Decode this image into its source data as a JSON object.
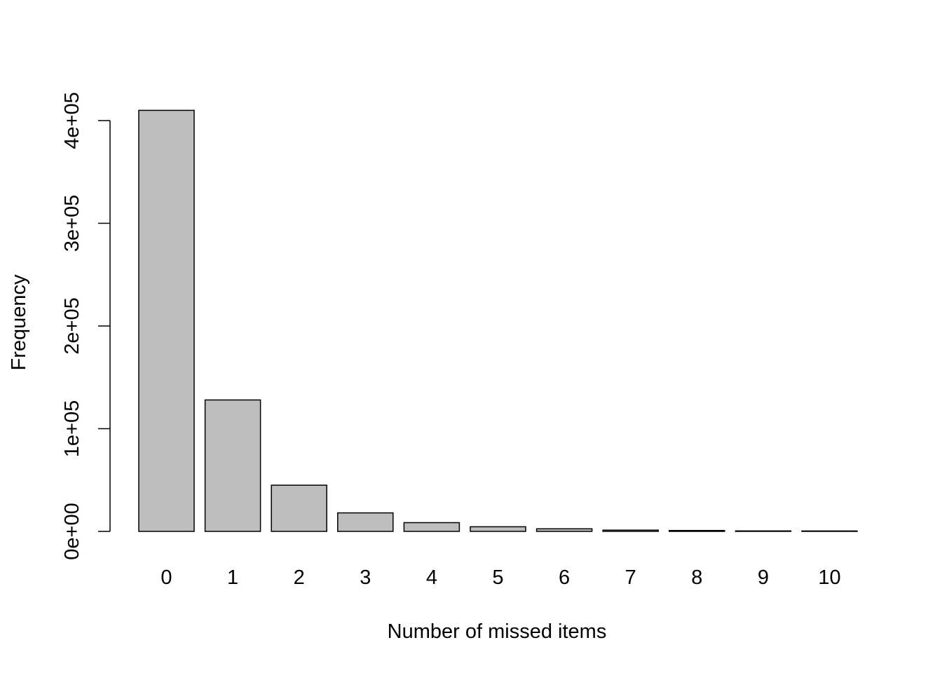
{
  "chart_data": {
    "type": "bar",
    "title": "",
    "xlabel": "Number of missed items",
    "ylabel": "Frequency",
    "categories": [
      "0",
      "1",
      "2",
      "3",
      "4",
      "5",
      "6",
      "7",
      "8",
      "9",
      "10"
    ],
    "values": [
      410000,
      128000,
      45000,
      18000,
      8500,
      4500,
      2500,
      1200,
      900,
      500,
      400
    ],
    "ylim": [
      0,
      410000
    ],
    "yticks": [
      0,
      100000,
      200000,
      300000,
      400000
    ],
    "ytick_labels": [
      "0e+00",
      "1e+05",
      "2e+05",
      "3e+05",
      "4e+05"
    ],
    "grid": false,
    "legend": "none",
    "bar_fill": "#bebebe",
    "bar_stroke": "#000000"
  }
}
